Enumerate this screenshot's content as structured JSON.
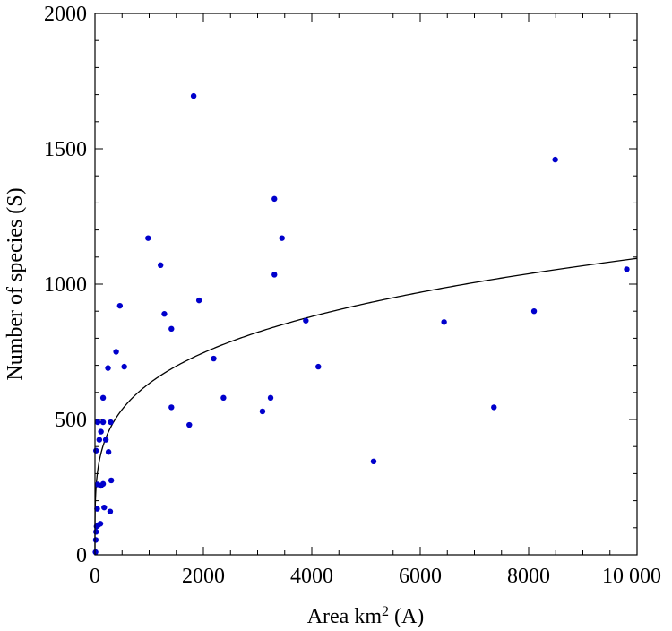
{
  "chart_data": {
    "type": "scatter",
    "title": "",
    "xlabel": "Area km",
    "xlabel_sup": "2",
    "xlabel_tail": " (A)",
    "ylabel": "Number of species (S)",
    "xlim": [
      0,
      10000
    ],
    "ylim": [
      0,
      2000
    ],
    "x_ticks": [
      0,
      2000,
      4000,
      6000,
      8000,
      10000
    ],
    "x_tick_labels": [
      "0",
      "2000",
      "4000",
      "6000",
      "8000",
      "10 000"
    ],
    "y_ticks": [
      0,
      500,
      1000,
      1500,
      2000
    ],
    "y_tick_labels": [
      "0",
      "500",
      "1000",
      "1500",
      "2000"
    ],
    "grid": false,
    "point_color": "#0000cc",
    "fit": {
      "type": "power",
      "a": 122.3,
      "b": 0.238
    },
    "points": [
      {
        "x": 10,
        "y": 10
      },
      {
        "x": 15,
        "y": 55
      },
      {
        "x": 20,
        "y": 85
      },
      {
        "x": 30,
        "y": 105
      },
      {
        "x": 60,
        "y": 110
      },
      {
        "x": 100,
        "y": 115
      },
      {
        "x": 40,
        "y": 170
      },
      {
        "x": 170,
        "y": 175
      },
      {
        "x": 280,
        "y": 160
      },
      {
        "x": 50,
        "y": 260
      },
      {
        "x": 110,
        "y": 255
      },
      {
        "x": 150,
        "y": 262
      },
      {
        "x": 300,
        "y": 275
      },
      {
        "x": 20,
        "y": 385
      },
      {
        "x": 250,
        "y": 380
      },
      {
        "x": 80,
        "y": 425
      },
      {
        "x": 200,
        "y": 425
      },
      {
        "x": 110,
        "y": 455
      },
      {
        "x": 50,
        "y": 490
      },
      {
        "x": 150,
        "y": 490
      },
      {
        "x": 290,
        "y": 490
      },
      {
        "x": 150,
        "y": 580
      },
      {
        "x": 240,
        "y": 690
      },
      {
        "x": 540,
        "y": 695
      },
      {
        "x": 390,
        "y": 750
      },
      {
        "x": 460,
        "y": 920
      },
      {
        "x": 980,
        "y": 1170
      },
      {
        "x": 1210,
        "y": 1070
      },
      {
        "x": 1280,
        "y": 890
      },
      {
        "x": 1410,
        "y": 835
      },
      {
        "x": 1920,
        "y": 940
      },
      {
        "x": 1410,
        "y": 545
      },
      {
        "x": 1740,
        "y": 480
      },
      {
        "x": 1820,
        "y": 1695
      },
      {
        "x": 2190,
        "y": 725
      },
      {
        "x": 2370,
        "y": 580
      },
      {
        "x": 3090,
        "y": 530
      },
      {
        "x": 3240,
        "y": 580
      },
      {
        "x": 3310,
        "y": 1315
      },
      {
        "x": 3310,
        "y": 1035
      },
      {
        "x": 3450,
        "y": 1170
      },
      {
        "x": 3890,
        "y": 865
      },
      {
        "x": 4120,
        "y": 695
      },
      {
        "x": 5140,
        "y": 345
      },
      {
        "x": 6440,
        "y": 860
      },
      {
        "x": 7360,
        "y": 545
      },
      {
        "x": 8100,
        "y": 900
      },
      {
        "x": 8490,
        "y": 1460
      },
      {
        "x": 9810,
        "y": 1055
      }
    ]
  }
}
